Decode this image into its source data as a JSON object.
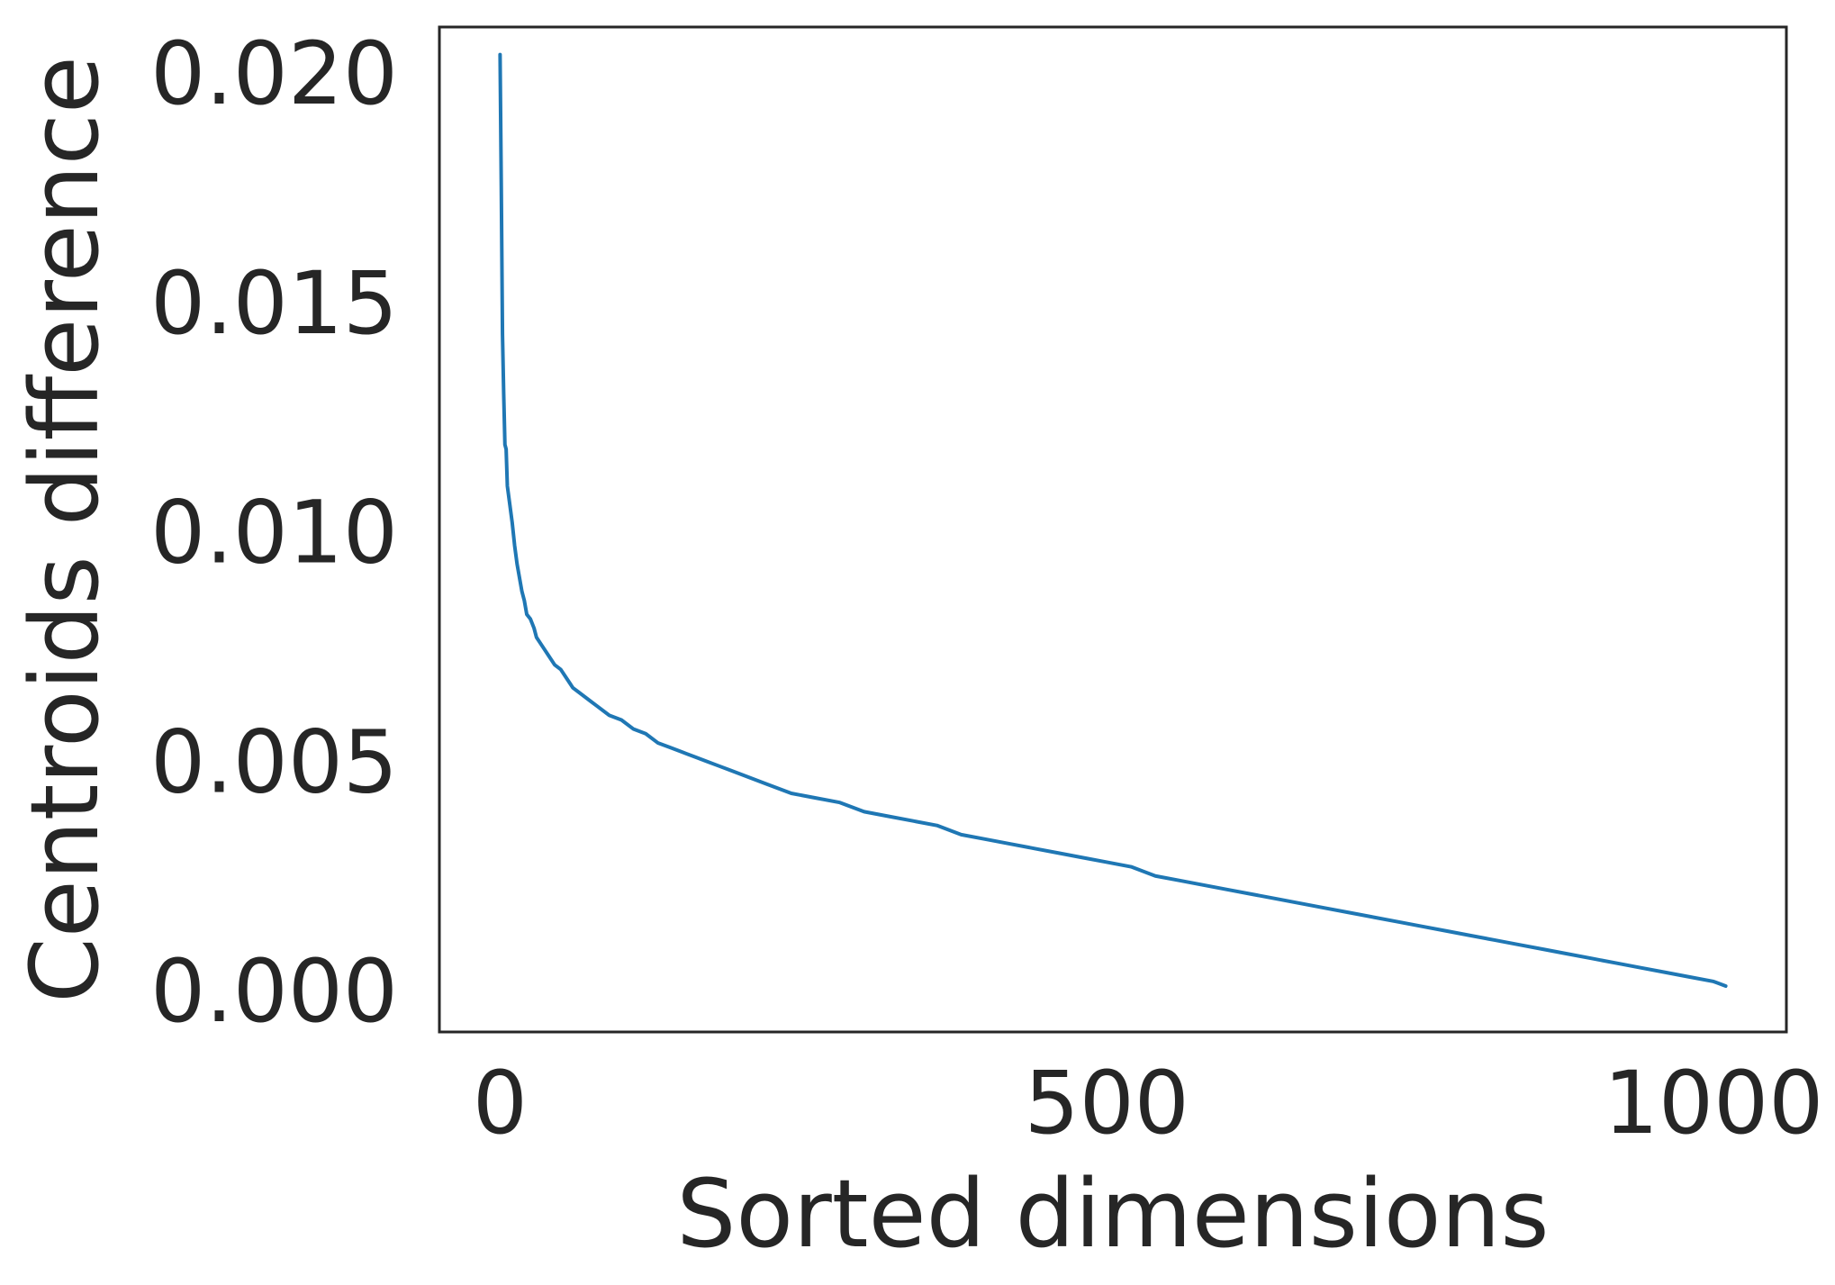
{
  "chart_data": {
    "type": "line",
    "title": "",
    "xlabel": "Sorted dimensions",
    "ylabel": "Centroids difference",
    "xlim": [
      -50,
      1060
    ],
    "ylim": [
      -0.0009,
      0.021
    ],
    "xticks": [
      0,
      500,
      1000
    ],
    "xtick_labels": [
      "0",
      "500",
      "1000"
    ],
    "yticks": [
      0.0,
      0.005,
      0.01,
      0.015,
      0.02
    ],
    "ytick_labels": [
      "0.000",
      "0.005",
      "0.010",
      "0.015",
      "0.020"
    ],
    "grid": false,
    "legend": "none",
    "series": [
      {
        "color": "#1f77b4",
        "x": [
          0,
          1,
          2,
          3,
          4,
          5,
          6,
          8,
          10,
          12,
          14,
          16,
          18,
          20,
          22,
          25,
          28,
          30,
          35,
          40,
          45,
          50,
          55,
          60,
          65,
          70,
          75,
          80,
          90,
          100,
          110,
          120,
          130,
          140,
          150,
          160,
          170,
          180,
          190,
          200,
          220,
          240,
          260,
          280,
          300,
          320,
          340,
          360,
          380,
          400,
          420,
          440,
          460,
          480,
          500,
          520,
          540,
          560,
          580,
          600,
          620,
          640,
          660,
          680,
          700,
          720,
          740,
          760,
          780,
          800,
          820,
          840,
          860,
          880,
          900,
          920,
          940,
          960,
          980,
          1000,
          1010
        ],
        "y": [
          0.0204,
          0.0175,
          0.0143,
          0.013,
          0.0119,
          0.0118,
          0.011,
          0.0106,
          0.0102,
          0.0097,
          0.0093,
          0.009,
          0.0087,
          0.0085,
          0.0082,
          0.0081,
          0.0079,
          0.0077,
          0.0075,
          0.0073,
          0.0071,
          0.007,
          0.0068,
          0.0066,
          0.0065,
          0.0064,
          0.0063,
          0.0062,
          0.006,
          0.0059,
          0.0057,
          0.0056,
          0.0054,
          0.0053,
          0.0052,
          0.0051,
          0.005,
          0.0049,
          0.0048,
          0.0047,
          0.0045,
          0.0043,
          0.0042,
          0.0041,
          0.0039,
          0.0038,
          0.0037,
          0.0036,
          0.0034,
          0.0033,
          0.0032,
          0.0031,
          0.003,
          0.0029,
          0.0028,
          0.0027,
          0.0025,
          0.0024,
          0.0023,
          0.0022,
          0.0021,
          0.002,
          0.0019,
          0.0018,
          0.0017,
          0.0016,
          0.0015,
          0.0014,
          0.0013,
          0.0012,
          0.0011,
          0.001,
          0.0009,
          0.0008,
          0.0007,
          0.0006,
          0.0005,
          0.0004,
          0.0003,
          0.0002,
          0.0001
        ]
      }
    ]
  }
}
